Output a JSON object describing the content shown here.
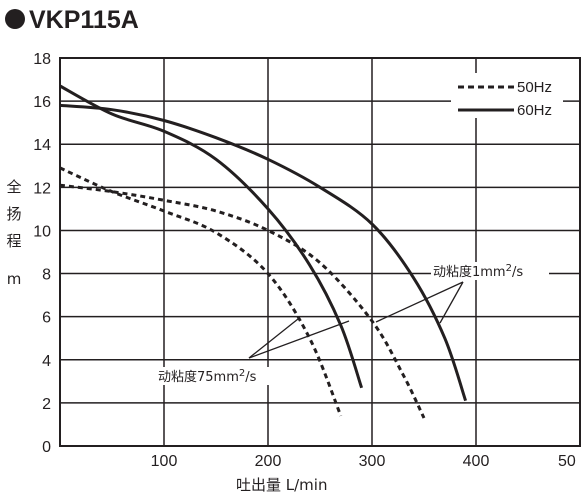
{
  "chart_data": {
    "type": "line",
    "title": "VKP115A",
    "xlabel": "吐出量 L/min",
    "ylabel": [
      "全",
      "扬",
      "程",
      "m"
    ],
    "xlim": [
      0,
      500
    ],
    "ylim": [
      0,
      18
    ],
    "xticks": [
      "100",
      "200",
      "300",
      "400",
      "50"
    ],
    "yticks": [
      "0",
      "2",
      "4",
      "6",
      "8",
      "10",
      "12",
      "14",
      "16",
      "18"
    ],
    "grid": true,
    "legend": {
      "position": "top-right",
      "entries": [
        {
          "label": "50Hz",
          "style": "dashed"
        },
        {
          "label": "60Hz",
          "style": "solid"
        }
      ]
    },
    "series": [
      {
        "group": "50Hz",
        "style": "dashed",
        "x": [
          0,
          50,
          100,
          150,
          200,
          240,
          270
        ],
        "y": [
          12.9,
          11.8,
          10.9,
          9.9,
          8.0,
          5.0,
          1.4
        ]
      },
      {
        "group": "50Hz",
        "style": "dashed",
        "x": [
          0,
          50,
          100,
          150,
          200,
          250,
          300,
          330,
          350
        ],
        "y": [
          12.1,
          11.8,
          11.4,
          10.9,
          10.0,
          8.5,
          5.8,
          3.3,
          1.3
        ]
      },
      {
        "group": "60Hz",
        "style": "solid",
        "x": [
          0,
          50,
          100,
          150,
          200,
          240,
          270,
          290
        ],
        "y": [
          16.7,
          15.4,
          14.6,
          13.3,
          11.0,
          8.4,
          5.6,
          2.7
        ]
      },
      {
        "group": "60Hz",
        "style": "solid",
        "x": [
          0,
          50,
          100,
          150,
          200,
          250,
          300,
          340,
          370,
          390
        ],
        "y": [
          15.8,
          15.6,
          15.1,
          14.3,
          13.3,
          12.0,
          10.3,
          7.8,
          5.0,
          2.1
        ]
      }
    ],
    "annotations": [
      {
        "text_main": "动粘度75mm",
        "sup": "2",
        "text_end": "/s"
      },
      {
        "text_main": "动粘度1mm",
        "sup": "2",
        "text_end": "/s"
      }
    ],
    "colors": {
      "line": "#231f20",
      "grid": "#231f20",
      "background": "#ffffff"
    }
  }
}
